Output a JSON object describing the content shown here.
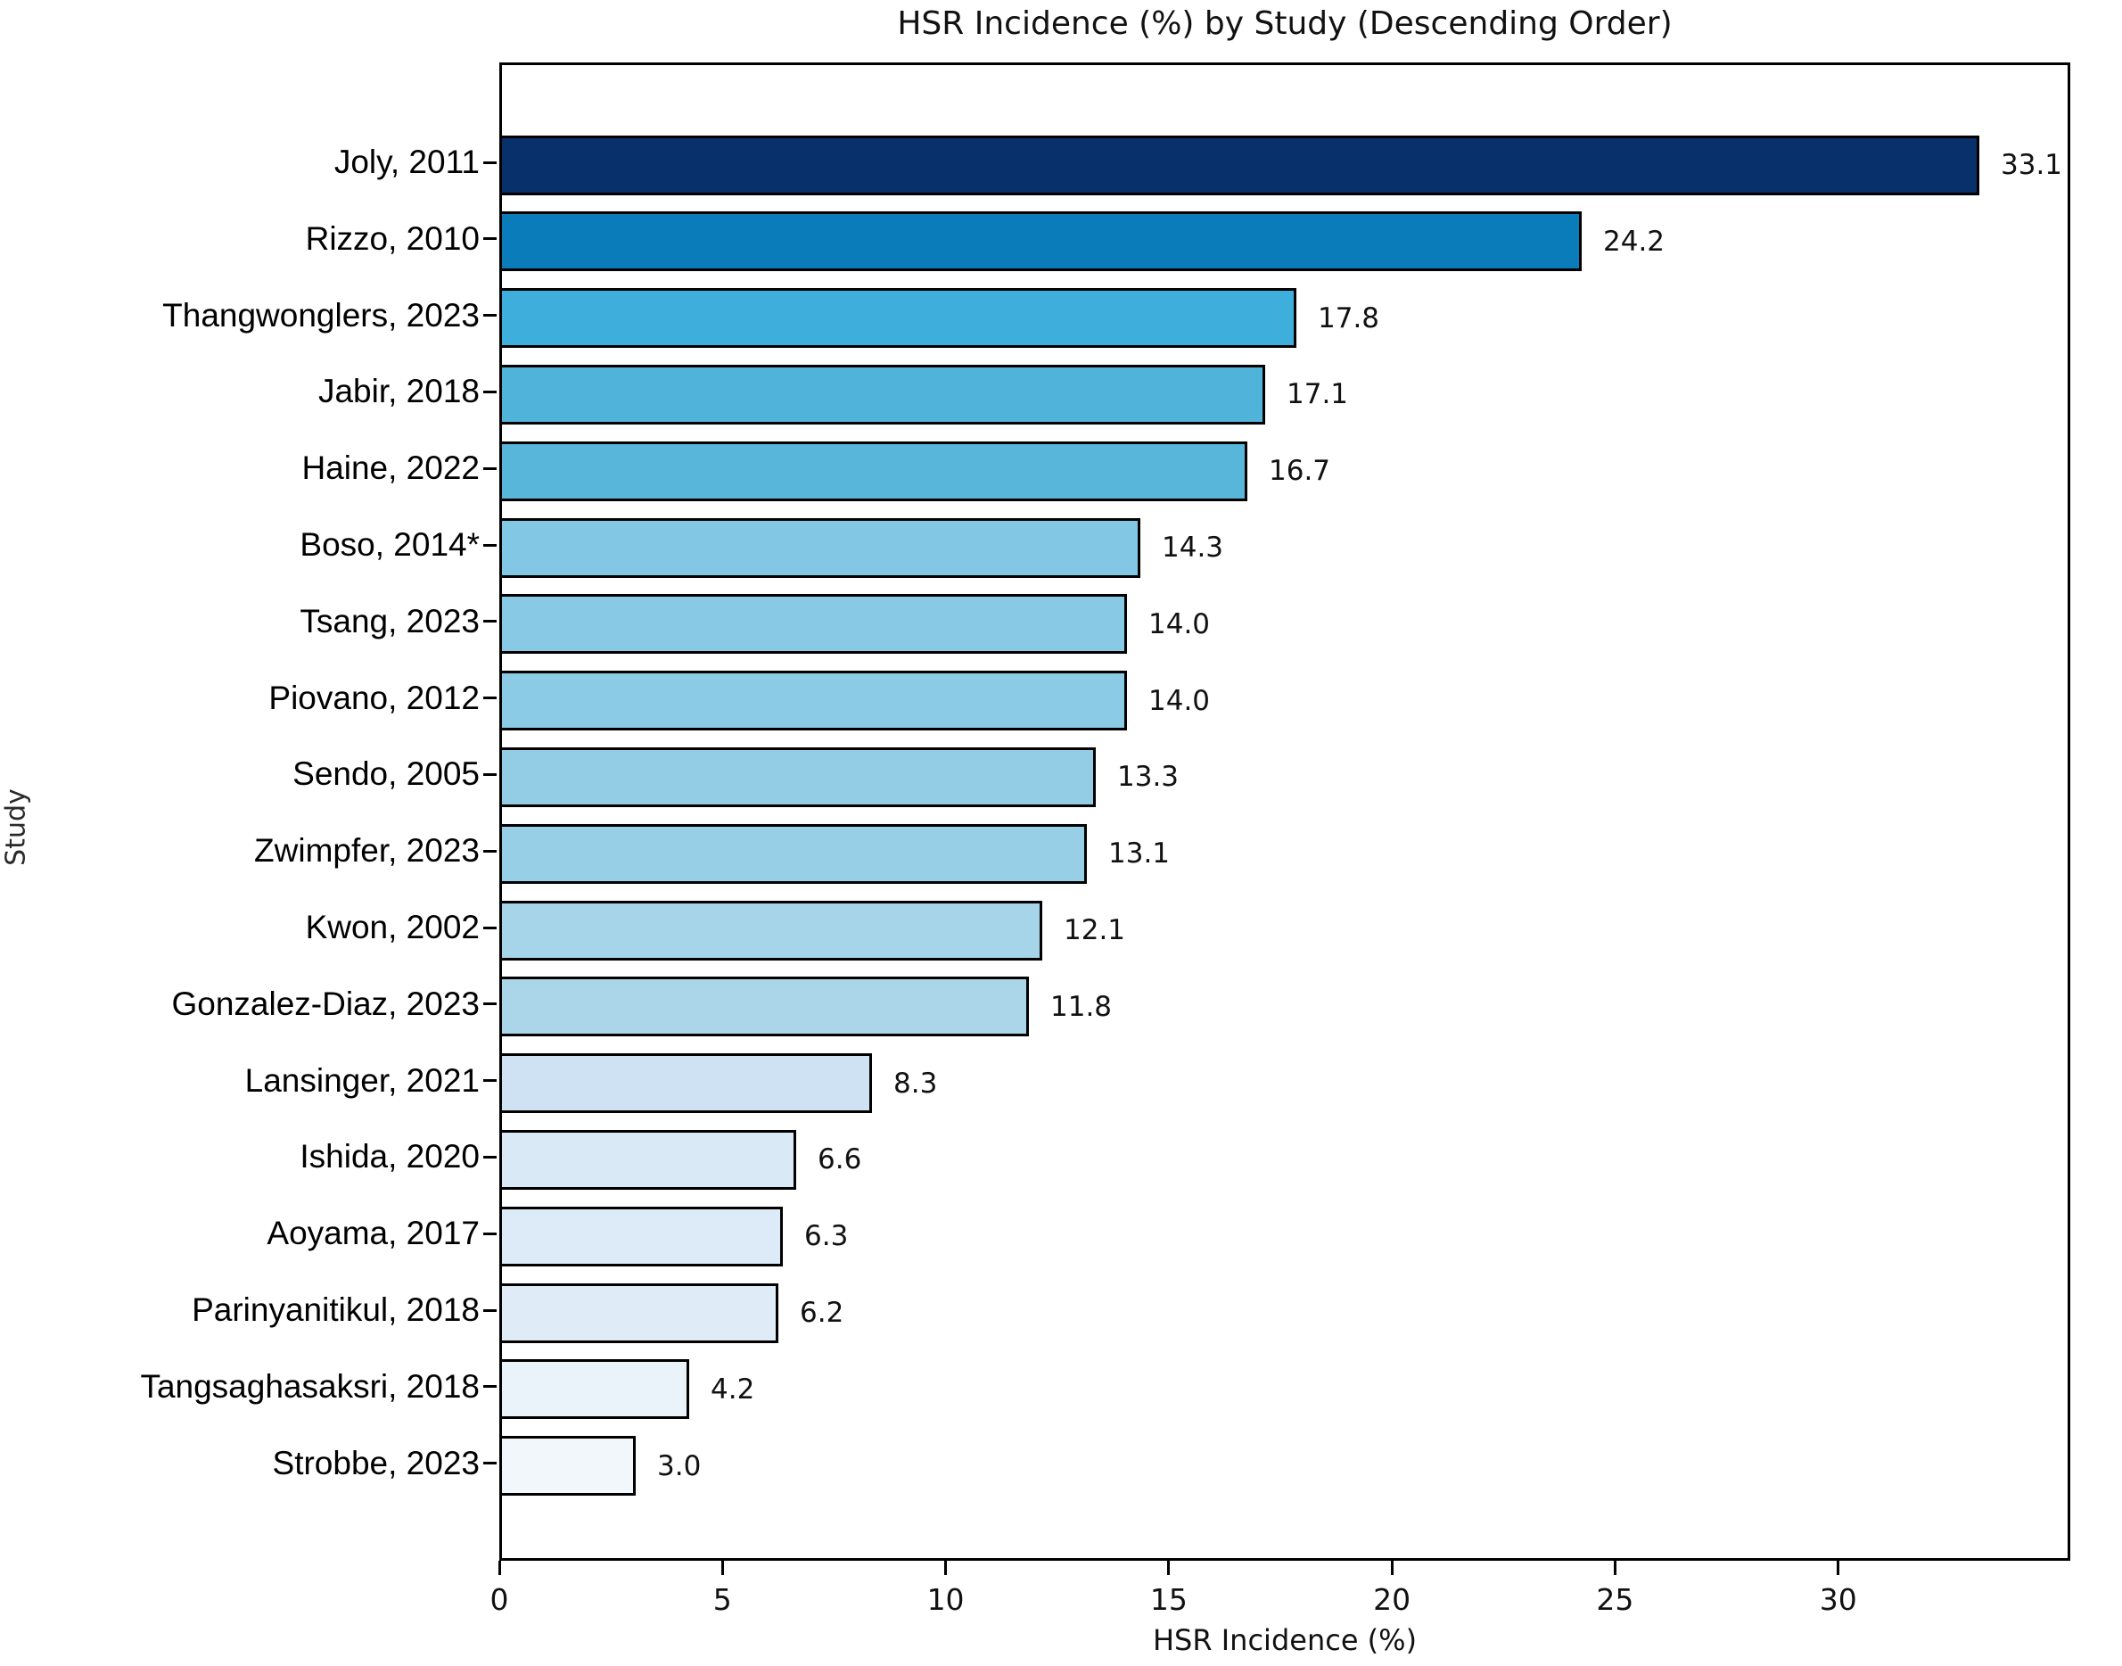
{
  "title": "HSR Incidence (%) by Study (Descending Order)",
  "chart_data": {
    "type": "bar",
    "orientation": "horizontal",
    "title": "HSR Incidence (%) by Study (Descending Order)",
    "xlabel": "HSR Incidence (%)",
    "ylabel": "Study",
    "xlim": [
      0,
      35.2
    ],
    "xticks": [
      0,
      5,
      10,
      15,
      20,
      25,
      30
    ],
    "grid": false,
    "legend": "none",
    "value_labels_shown": true,
    "categories": [
      "Joly, 2011",
      "Rizzo, 2010",
      "Thangwonglers, 2023",
      "Jabir, 2018",
      "Haine, 2022",
      "Boso, 2014*",
      "Tsang, 2023",
      "Piovano, 2012",
      "Sendo, 2005",
      "Zwimpfer, 2023",
      "Kwon, 2002",
      "Gonzalez-Diaz, 2023",
      "Lansinger, 2021",
      "Ishida, 2020",
      "Aoyama, 2017",
      "Parinyanitikul, 2018",
      "Tangsaghasaksri, 2018",
      "Strobbe, 2023"
    ],
    "values": [
      33.1,
      24.2,
      17.8,
      17.1,
      16.7,
      14.3,
      14.0,
      14.0,
      13.3,
      13.1,
      12.1,
      11.8,
      8.3,
      6.6,
      6.3,
      6.2,
      4.2,
      3.0
    ],
    "bar_colors": [
      "#08306b",
      "#0a7cba",
      "#3eafdc",
      "#4fb3da",
      "#58b6db",
      "#82c8e4",
      "#88cae5",
      "#8bcbe5",
      "#92cde5",
      "#97cfe6",
      "#a6d4e9",
      "#abd6ea",
      "#cfe2f3",
      "#d9e9f6",
      "#dcebf7",
      "#dfecf7",
      "#eaf2fa",
      "#f2f7fc"
    ],
    "bar_edge_color": "#000000"
  }
}
